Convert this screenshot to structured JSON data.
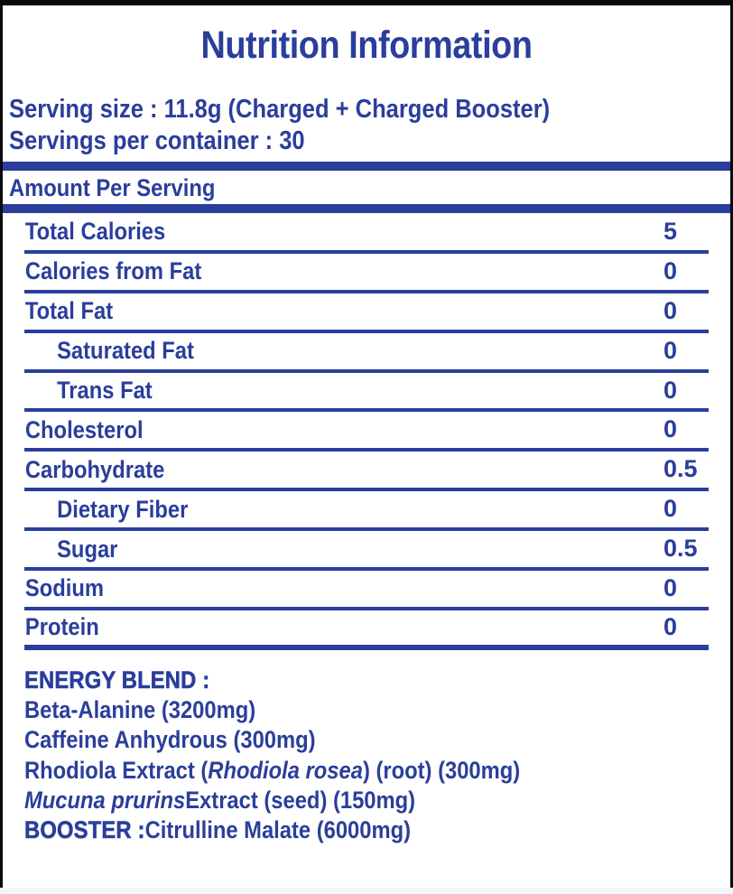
{
  "label": {
    "title": "Nutrition Information",
    "serving_size_line": "Serving size : 11.8g (Charged + Charged Booster)",
    "servings_per_container_line": "Servings per container : 30",
    "amount_per_serving_heading": "Amount Per Serving",
    "colors": {
      "accent_blue": "#2a3e9b",
      "frame_black": "#0a0a0a"
    },
    "nutrition_rows": [
      {
        "label": "Total Calories",
        "value": "5",
        "indent": false
      },
      {
        "label": "Calories from Fat",
        "value": "0",
        "indent": false
      },
      {
        "label": "Total Fat",
        "value": "0",
        "indent": false
      },
      {
        "label": "Saturated Fat",
        "value": "0",
        "indent": true
      },
      {
        "label": "Trans Fat",
        "value": "0",
        "indent": true
      },
      {
        "label": "Cholesterol",
        "value": "0",
        "indent": false
      },
      {
        "label": "Carbohydrate",
        "value": "0.5",
        "indent": false
      },
      {
        "label": "Dietary Fiber",
        "value": "0",
        "indent": true
      },
      {
        "label": "Sugar",
        "value": "0.5",
        "indent": true
      },
      {
        "label": "Sodium",
        "value": "0",
        "indent": false
      },
      {
        "label": "Protein",
        "value": "0",
        "indent": false
      }
    ],
    "energy_blend": {
      "heading": "ENERGY BLEND :",
      "lines": [
        {
          "segments": [
            {
              "text": "Beta-Alanine (3200mg)"
            }
          ]
        },
        {
          "segments": [
            {
              "text": "Caffeine Anhydrous (300mg)"
            }
          ]
        },
        {
          "segments": [
            {
              "text": "Rhodiola Extract ("
            },
            {
              "text": "Rhodiola rosea",
              "italic": true
            },
            {
              "text": ") (root) (300mg)"
            }
          ]
        },
        {
          "segments": [
            {
              "text": "Mucuna prurins",
              "italic": true
            },
            {
              "text": " Extract (seed) (150mg)"
            }
          ]
        },
        {
          "segments": [
            {
              "text": "BOOSTER : ",
              "bold": true
            },
            {
              "text": " Citrulline Malate (6000mg)"
            }
          ]
        }
      ]
    }
  }
}
